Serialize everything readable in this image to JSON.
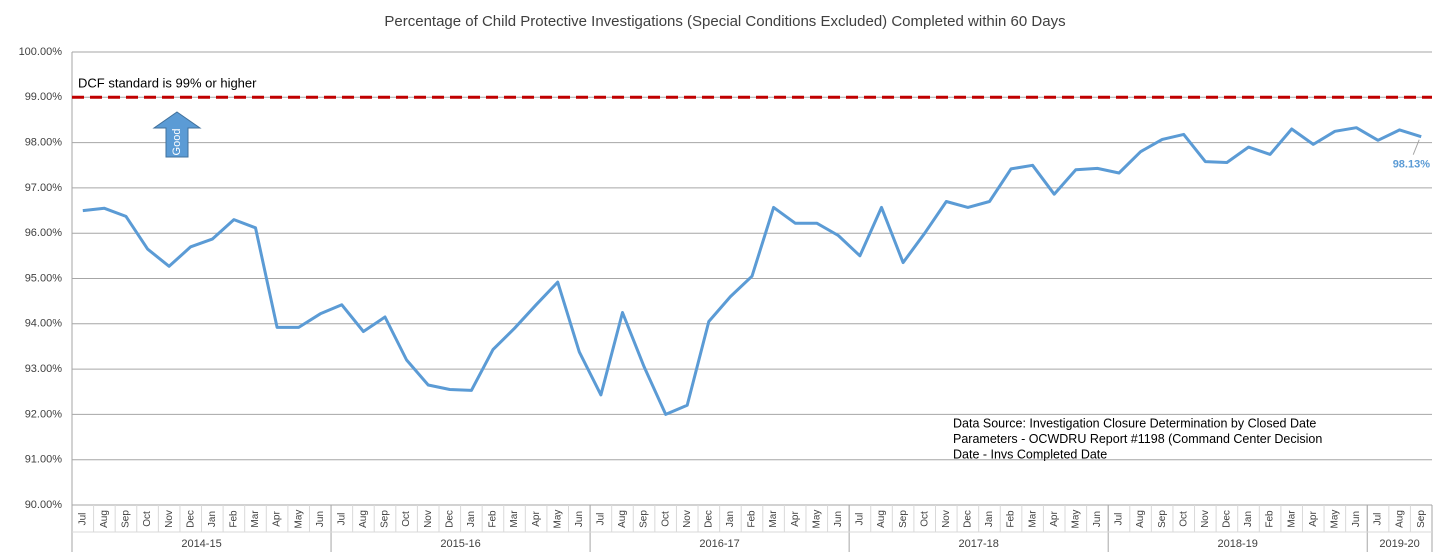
{
  "chart_data": {
    "type": "line",
    "title": "Percentage of Child Protective Investigations (Special Conditions Excluded) Completed within 60 Days",
    "groups": [
      {
        "name": "2014-15",
        "categories": [
          "Jul",
          "Aug",
          "Sep",
          "Oct",
          "Nov",
          "Dec",
          "Jan",
          "Feb",
          "Mar",
          "Apr",
          "May",
          "Jun"
        ]
      },
      {
        "name": "2015-16",
        "categories": [
          "Jul",
          "Aug",
          "Sep",
          "Oct",
          "Nov",
          "Dec",
          "Jan",
          "Feb",
          "Mar",
          "Apr",
          "May",
          "Jun"
        ]
      },
      {
        "name": "2016-17",
        "categories": [
          "Jul",
          "Aug",
          "Sep",
          "Oct",
          "Nov",
          "Dec",
          "Jan",
          "Feb",
          "Mar",
          "Apr",
          "May",
          "Jun"
        ]
      },
      {
        "name": "2017-18",
        "categories": [
          "Jul",
          "Aug",
          "Sep",
          "Oct",
          "Nov",
          "Dec",
          "Jan",
          "Feb",
          "Mar",
          "Apr",
          "May",
          "Jun"
        ]
      },
      {
        "name": "2018-19",
        "categories": [
          "Jul",
          "Aug",
          "Sep",
          "Oct",
          "Nov",
          "Dec",
          "Jan",
          "Feb",
          "Mar",
          "Apr",
          "May",
          "Jun"
        ]
      },
      {
        "name": "2019-20",
        "categories": [
          "Jul",
          "Aug",
          "Sep"
        ]
      }
    ],
    "series": [
      {
        "color": "#5b9bd5",
        "end_label": "98.13%",
        "values": [
          96.5,
          96.55,
          96.37,
          95.65,
          95.27,
          95.7,
          95.87,
          96.3,
          96.12,
          93.92,
          93.92,
          94.22,
          94.42,
          93.83,
          94.15,
          93.2,
          92.65,
          92.55,
          92.53,
          93.43,
          93.9,
          94.42,
          94.92,
          93.38,
          92.43,
          94.25,
          93.05,
          92.0,
          92.2,
          94.05,
          94.6,
          95.05,
          96.57,
          96.22,
          96.22,
          95.95,
          95.5,
          96.57,
          95.35,
          96.0,
          96.7,
          96.57,
          96.7,
          97.42,
          97.5,
          96.86,
          97.4,
          97.43,
          97.33,
          97.8,
          98.07,
          98.18,
          97.58,
          97.56,
          97.9,
          97.74,
          98.3,
          97.96,
          98.25,
          98.33,
          98.05,
          98.28,
          98.13
        ]
      }
    ],
    "ylim": [
      90,
      100
    ],
    "yticks": [
      {
        "value": 90,
        "label": "90.00%"
      },
      {
        "value": 91,
        "label": "91.00%"
      },
      {
        "value": 92,
        "label": "92.00%"
      },
      {
        "value": 93,
        "label": "93.00%"
      },
      {
        "value": 94,
        "label": "94.00%"
      },
      {
        "value": 95,
        "label": "95.00%"
      },
      {
        "value": 96,
        "label": "96.00%"
      },
      {
        "value": 97,
        "label": "97.00%"
      },
      {
        "value": 98,
        "label": "98.00%"
      },
      {
        "value": 99,
        "label": "99.00%"
      },
      {
        "value": 100,
        "label": "100.00%"
      }
    ],
    "grid": true,
    "reference_line": {
      "value": 99,
      "label": "DCF standard is 99% or higher",
      "color": "#c00000"
    },
    "arrow_label": "Good",
    "source_note": [
      "Data Source: Investigation Closure Determination by Closed Date",
      "Parameters - OCWDRU Report #1198  (Command Center Decision",
      "Date - Invs Completed Date"
    ]
  }
}
